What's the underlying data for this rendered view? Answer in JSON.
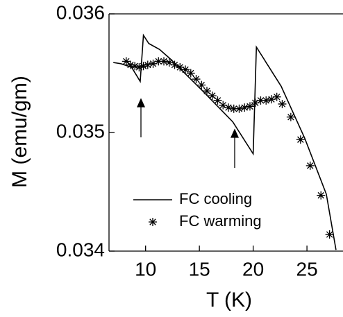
{
  "chart_data": {
    "type": "line",
    "x_label": "T (K)",
    "y_label": "M (emu/gm)",
    "xlim": [
      6.6,
      28.35
    ],
    "ylim": [
      0.034,
      0.036
    ],
    "xticks": [
      10,
      15,
      20,
      25
    ],
    "yticks": [
      0.034,
      0.035,
      0.036
    ],
    "series": [
      {
        "name": "FC cooling",
        "color": "#000000",
        "marker": "none",
        "x": [
          7.0,
          7.7,
          8.7,
          9.5,
          9.8,
          10.3,
          11.3,
          12.3,
          15.2,
          18.1,
          20.0,
          20.3,
          22.6,
          24.8,
          26.8,
          27.7
        ],
        "values": [
          0.03559,
          0.03558,
          0.03555,
          0.03543,
          0.03582,
          0.03575,
          0.0357,
          0.03562,
          0.03536,
          0.03509,
          0.03482,
          0.03572,
          0.03539,
          0.03495,
          0.03448,
          0.03401
        ]
      },
      {
        "name": "FC warming",
        "color": "#000000",
        "marker": "asterisk",
        "x": [
          8.2,
          8.6,
          9.0,
          9.4,
          9.8,
          10.2,
          10.7,
          11.2,
          11.7,
          12.2,
          12.7,
          13.2,
          13.7,
          14.2,
          14.7,
          15.2,
          15.7,
          16.2,
          16.7,
          17.2,
          17.7,
          18.2,
          18.7,
          19.2,
          19.7,
          20.2,
          20.7,
          21.2,
          21.7,
          22.2,
          22.7,
          23.5,
          24.4,
          25.3,
          26.3,
          27.1
        ],
        "values": [
          0.0356,
          0.03557,
          0.03556,
          0.03555,
          0.03556,
          0.03557,
          0.03558,
          0.0356,
          0.0356,
          0.03559,
          0.03557,
          0.03555,
          0.03553,
          0.0355,
          0.03545,
          0.0354,
          0.03535,
          0.03531,
          0.03527,
          0.03523,
          0.03521,
          0.0352,
          0.0352,
          0.03521,
          0.03522,
          0.03525,
          0.03527,
          0.03527,
          0.03528,
          0.0353,
          0.03524,
          0.03513,
          0.03494,
          0.03472,
          0.03447,
          0.03414
        ]
      }
    ]
  }
}
